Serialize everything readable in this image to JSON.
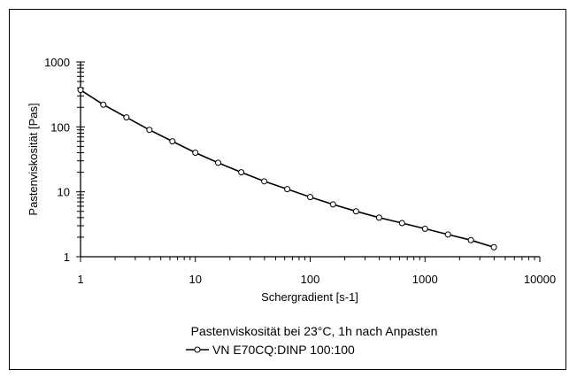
{
  "chart_data": {
    "type": "line",
    "x_scale": "log",
    "y_scale": "log",
    "xlabel": "Schergradient  [s-1]",
    "ylabel": "Pastenviskosität  [Pas]",
    "xlim": [
      1,
      10000
    ],
    "ylim": [
      1,
      1000
    ],
    "x_ticks": [
      1,
      10,
      100,
      1000,
      10000
    ],
    "x_tick_labels": [
      "1",
      "10",
      "100",
      "1000",
      "10000"
    ],
    "y_ticks": [
      1,
      10,
      100,
      1000
    ],
    "y_tick_labels": [
      "1",
      "10",
      "100",
      "1000"
    ],
    "grid": false,
    "caption_title": "Pastenviskosität bei 23°C, 1h nach Anpasten",
    "legend_position": "bottom",
    "series": [
      {
        "name": "VN E70CQ:DINP  100:100",
        "color": "#000000",
        "marker": "open-circle",
        "x": [
          1,
          1.58,
          2.51,
          3.98,
          6.31,
          10,
          15.8,
          25.1,
          39.8,
          63.1,
          100,
          158,
          251,
          398,
          631,
          1000,
          1585,
          2512,
          3981
        ],
        "y": [
          370,
          220,
          140,
          90,
          60,
          40,
          28,
          20,
          14.5,
          11,
          8.3,
          6.4,
          5.0,
          4.0,
          3.3,
          2.7,
          2.2,
          1.8,
          1.4
        ]
      }
    ]
  }
}
